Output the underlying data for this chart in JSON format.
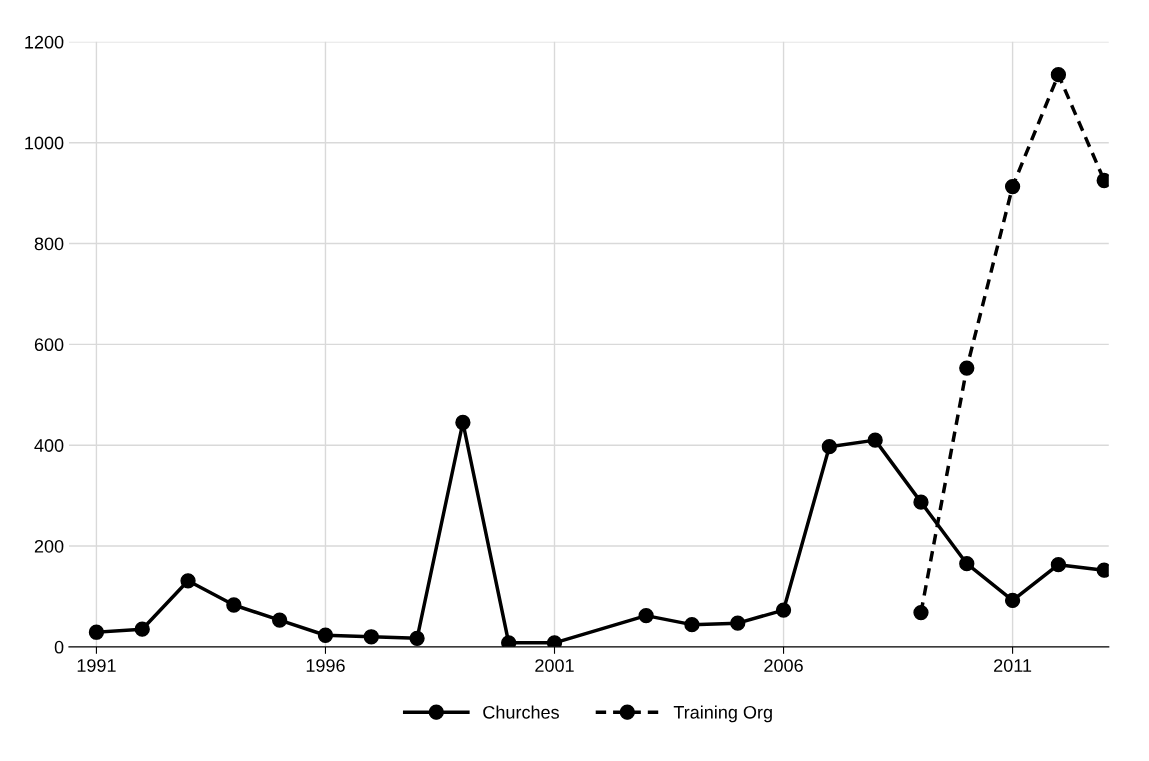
{
  "chart_data": {
    "type": "line",
    "x": [
      1991,
      1992,
      1993,
      1994,
      1995,
      1996,
      1997,
      1998,
      1999,
      2000,
      2001,
      2003,
      2004,
      2005,
      2006,
      2007,
      2008,
      2009,
      2010,
      2011,
      2012,
      2013
    ],
    "series": [
      {
        "name": "Churches",
        "color": "#000000",
        "line_style": "solid",
        "values": [
          29,
          35,
          131,
          83,
          53,
          23,
          20,
          17,
          445,
          8,
          8,
          62,
          44,
          47,
          73,
          397,
          410,
          287,
          165,
          92,
          163,
          152
        ]
      },
      {
        "name": "Training Org",
        "color": "#000000",
        "line_style": "dashed",
        "x": [
          2009,
          2010,
          2011,
          2012,
          2013
        ],
        "values": [
          68,
          553,
          913,
          1135,
          925
        ]
      }
    ],
    "xlim": [
      1990.4,
      2013.1
    ],
    "xticks": [
      1991,
      1996,
      2001,
      2006,
      2011
    ],
    "ylim": [
      0,
      1200
    ],
    "yticks": [
      0,
      200,
      400,
      600,
      800,
      1000,
      1200
    ],
    "grid": true,
    "legend": "bottom",
    "marker": "circle"
  }
}
